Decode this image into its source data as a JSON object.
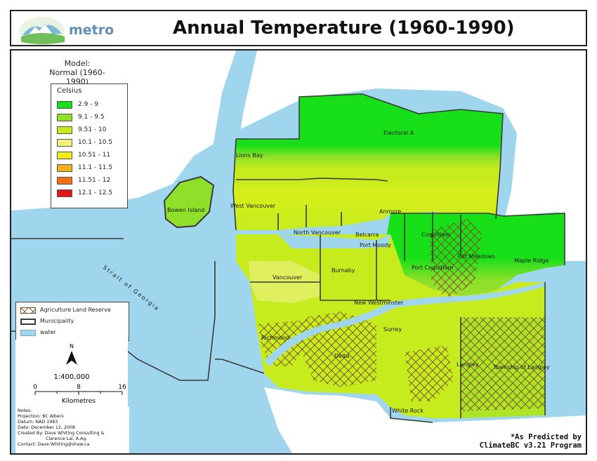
{
  "header": {
    "logo_text": "metro",
    "title": "Annual Temperature (1960-1990)"
  },
  "model": {
    "line1": "Model:",
    "line2": "Normal (1960-1990)"
  },
  "legend": {
    "title": "Celsius",
    "classes": [
      {
        "label": "2.9 - 9",
        "color": "#18e018"
      },
      {
        "label": "9.1 - 9.5",
        "color": "#8ee02a"
      },
      {
        "label": "9.51 - 10",
        "color": "#c6ec1e"
      },
      {
        "label": "10.1 - 10.5",
        "color": "#f2f27a"
      },
      {
        "label": "10.51 - 11",
        "color": "#f2ec16"
      },
      {
        "label": "11.1 - 11.5",
        "color": "#f2b21a"
      },
      {
        "label": "11.51 - 12",
        "color": "#f07018"
      },
      {
        "label": "12.1 - 12.5",
        "color": "#e01818"
      }
    ]
  },
  "layers": {
    "items": [
      {
        "label": "Agriculture Land Reserve",
        "icon": "hatch-swatch"
      },
      {
        "label": "Municipality",
        "icon": "outline-swatch"
      },
      {
        "label": "water",
        "icon": "water-swatch"
      }
    ]
  },
  "scale": {
    "north": "N",
    "ratio": "1:400,000",
    "ticks": [
      "0",
      "8",
      "16"
    ],
    "unit": "Kilometres"
  },
  "notes": {
    "lines": [
      "Notes:",
      "Projection: BC Albers",
      "Datum: NAD 1983",
      "Date: December 12, 2008",
      "Created By: Dave Whiting Consulting &",
      "                    Clarence Lai, A.Ag.",
      "Contact: Dave.Whiting@shaw.ca"
    ]
  },
  "credit": {
    "line1": "*As Predicted by",
    "line2": "ClimateBC v3.21 Program"
  },
  "map": {
    "water_label": "Strait of Georgia",
    "places": [
      "Electoral A",
      "Lions Bay",
      "Bowen Island",
      "West Vancouver",
      "North Vancouver",
      "Belcarra",
      "Anmore",
      "Port Moody",
      "Coquitlam",
      "Pitt Meadows",
      "Maple Ridge",
      "Port Coquitlam",
      "Burnaby",
      "Vancouver",
      "New Westminster",
      "Richmond",
      "Surrey",
      "Delta",
      "Langley",
      "Township of Langley",
      "White Rock"
    ],
    "colors": {
      "water": "#9fd6ee",
      "land": "#ffffff",
      "boundary": "#3a3a3a",
      "alr": "#7a4a22"
    }
  }
}
